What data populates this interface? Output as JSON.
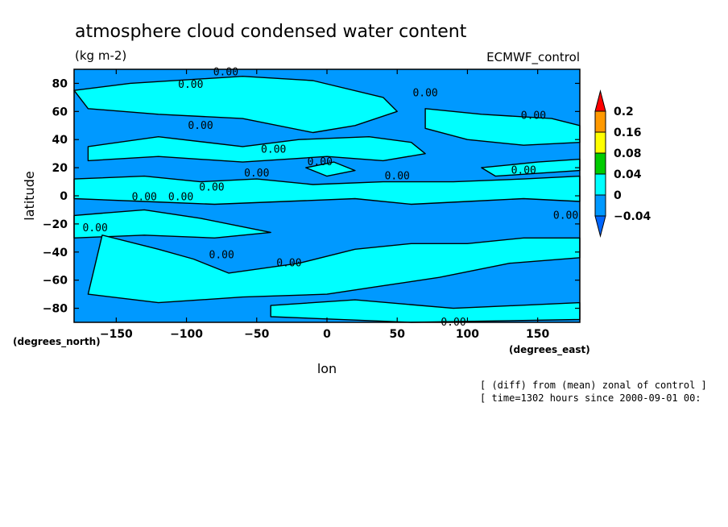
{
  "chart_data": {
    "type": "heatmap",
    "title": "atmosphere cloud condensed water content",
    "units": "(kg m-2)",
    "dataset": "ECMWF_control",
    "xlabel": "lon",
    "ylabel": "latitude",
    "x_unit": "(degrees_east)",
    "y_unit": "(degrees_north)",
    "xlim": [
      -180,
      180
    ],
    "ylim": [
      -90,
      90
    ],
    "x_ticks": [
      -150,
      -100,
      -50,
      0,
      50,
      100,
      150
    ],
    "y_ticks": [
      -80,
      -60,
      -40,
      -20,
      0,
      20,
      40,
      60,
      80
    ],
    "x_tick_labels": [
      "−150",
      "−100",
      "−50",
      "0",
      "50",
      "100",
      "150"
    ],
    "y_tick_labels": [
      "−80",
      "−60",
      "−40",
      "−20",
      "0",
      "20",
      "40",
      "60",
      "80"
    ],
    "colorbar": {
      "levels": [
        0.2,
        0.16,
        0.08,
        0.04,
        0,
        -0.04
      ],
      "labels": [
        "0.2",
        "0.16",
        "0.08",
        "0.04",
        "0",
        "−0.04"
      ],
      "colors": {
        "above_0.2": "#ff0000",
        "0.16_0.2": "#ff9900",
        "0.08_0.16": "#ffff00",
        "0.04_0.08": "#00cc00",
        "0_0.04": "#00ffff",
        "-0.04_0": "#0099ff",
        "below_-0.04": "#0066ff"
      }
    },
    "contour_level": "0.00",
    "positive_regions_lonlat": [
      [
        [
          -180,
          75
        ],
        [
          -140,
          80
        ],
        [
          -60,
          85
        ],
        [
          -10,
          82
        ],
        [
          40,
          70
        ],
        [
          50,
          60
        ],
        [
          20,
          50
        ],
        [
          -10,
          45
        ],
        [
          -60,
          55
        ],
        [
          -120,
          58
        ],
        [
          -170,
          62
        ]
      ],
      [
        [
          -170,
          35
        ],
        [
          -120,
          42
        ],
        [
          -60,
          35
        ],
        [
          -20,
          40
        ],
        [
          30,
          42
        ],
        [
          60,
          38
        ],
        [
          70,
          30
        ],
        [
          40,
          25
        ],
        [
          0,
          28
        ],
        [
          -60,
          24
        ],
        [
          -120,
          28
        ],
        [
          -170,
          25
        ]
      ],
      [
        [
          -180,
          12
        ],
        [
          -130,
          14
        ],
        [
          -90,
          10
        ],
        [
          -50,
          12
        ],
        [
          -10,
          8
        ],
        [
          40,
          10
        ],
        [
          90,
          10
        ],
        [
          140,
          12
        ],
        [
          180,
          14
        ],
        [
          180,
          -4
        ],
        [
          140,
          -2
        ],
        [
          100,
          -4
        ],
        [
          60,
          -6
        ],
        [
          20,
          -2
        ],
        [
          -30,
          -4
        ],
        [
          -80,
          -6
        ],
        [
          -130,
          -4
        ],
        [
          -180,
          -2
        ]
      ],
      [
        [
          -180,
          -14
        ],
        [
          -130,
          -10
        ],
        [
          -90,
          -16
        ],
        [
          -60,
          -22
        ],
        [
          -40,
          -26
        ],
        [
          -80,
          -30
        ],
        [
          -130,
          -28
        ],
        [
          -180,
          -30
        ]
      ],
      [
        [
          -160,
          -28
        ],
        [
          -120,
          -38
        ],
        [
          -95,
          -45
        ],
        [
          -70,
          -55
        ],
        [
          -20,
          -48
        ],
        [
          20,
          -38
        ],
        [
          60,
          -34
        ],
        [
          100,
          -34
        ],
        [
          140,
          -30
        ],
        [
          180,
          -30
        ],
        [
          180,
          -44
        ],
        [
          130,
          -48
        ],
        [
          80,
          -58
        ],
        [
          40,
          -64
        ],
        [
          0,
          -70
        ],
        [
          -60,
          -72
        ],
        [
          -120,
          -76
        ],
        [
          -170,
          -70
        ]
      ],
      [
        [
          -40,
          -78
        ],
        [
          20,
          -74
        ],
        [
          90,
          -80
        ],
        [
          180,
          -76
        ],
        [
          180,
          -88
        ],
        [
          60,
          -90
        ],
        [
          -40,
          -86
        ]
      ],
      [
        [
          70,
          62
        ],
        [
          110,
          58
        ],
        [
          160,
          55
        ],
        [
          180,
          50
        ],
        [
          180,
          38
        ],
        [
          140,
          36
        ],
        [
          100,
          40
        ],
        [
          70,
          48
        ]
      ],
      [
        [
          110,
          20
        ],
        [
          150,
          24
        ],
        [
          180,
          26
        ],
        [
          180,
          18
        ],
        [
          150,
          16
        ],
        [
          120,
          14
        ]
      ],
      [
        [
          -15,
          20
        ],
        [
          5,
          24
        ],
        [
          20,
          18
        ],
        [
          0,
          14
        ]
      ]
    ],
    "contour_labels_lonlat": [
      [
        -72,
        88
      ],
      [
        -97,
        79
      ],
      [
        70,
        73
      ],
      [
        -90,
        50
      ],
      [
        -38,
        33
      ],
      [
        -5,
        24
      ],
      [
        50,
        14
      ],
      [
        147,
        57
      ],
      [
        140,
        18
      ],
      [
        -130,
        -1
      ],
      [
        -104,
        -1
      ],
      [
        -82,
        6
      ],
      [
        -50,
        16
      ],
      [
        170,
        -14
      ],
      [
        -165,
        -23
      ],
      [
        -75,
        -42
      ],
      [
        -27,
        -48
      ],
      [
        90,
        -90
      ]
    ],
    "footnotes": [
      "[ (diff) from (mean) zonal of control ]",
      "[ time=1302 hours since 2000-09-01 00:"
    ]
  }
}
